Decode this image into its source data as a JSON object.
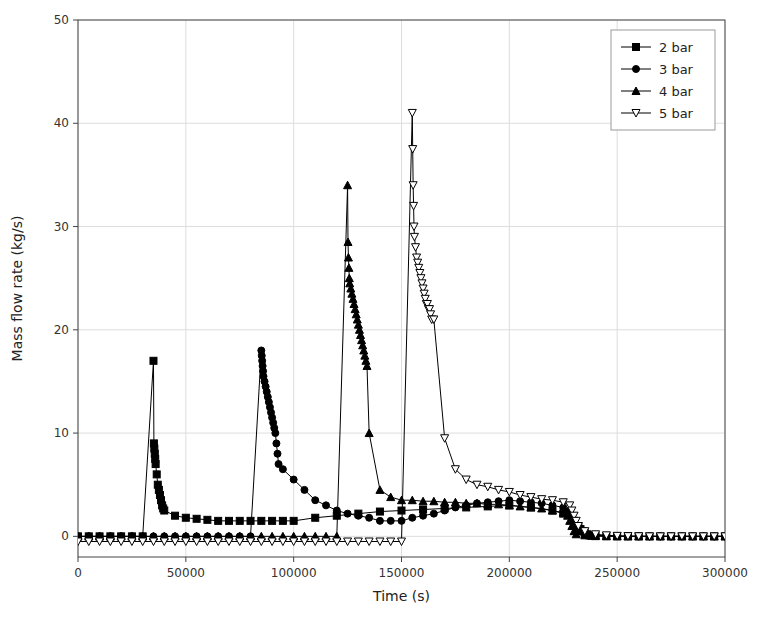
{
  "chart_data": {
    "type": "line",
    "xlabel": "Time (s)",
    "ylabel": "Mass flow rate (kg/s)",
    "xlim": [
      0,
      300000
    ],
    "ylim": [
      -2,
      50
    ],
    "xticks": [
      0,
      50000,
      100000,
      150000,
      200000,
      250000,
      300000
    ],
    "yticks": [
      0,
      10,
      20,
      30,
      40,
      50
    ],
    "grid": true,
    "legend": "upper right",
    "series": [
      {
        "name": "2 bar",
        "color": "black",
        "marker": "square",
        "x": [
          0,
          5000,
          10000,
          15000,
          20000,
          25000,
          30000,
          35000,
          35200,
          35400,
          35600,
          35800,
          36000,
          36500,
          37000,
          37500,
          38000,
          38500,
          39000,
          39500,
          40000,
          45000,
          50000,
          55000,
          60000,
          65000,
          70000,
          75000,
          80000,
          85000,
          90000,
          95000,
          100000,
          110000,
          120000,
          130000,
          140000,
          150000,
          160000,
          170000,
          180000,
          190000,
          200000,
          210000,
          220000,
          225000,
          230000,
          232000,
          233000,
          234000,
          235000,
          236000,
          237000,
          238000,
          240000,
          245000,
          250000,
          255000,
          260000,
          265000,
          270000,
          275000,
          280000,
          285000,
          290000,
          295000,
          300000
        ],
        "values": [
          0,
          0,
          0,
          0,
          0,
          0,
          0,
          17.0,
          9.0,
          8.5,
          8.0,
          7.5,
          7.0,
          6.0,
          5.0,
          4.5,
          4.0,
          3.5,
          3.0,
          2.7,
          2.5,
          2.0,
          1.8,
          1.7,
          1.6,
          1.5,
          1.5,
          1.5,
          1.5,
          1.5,
          1.5,
          1.5,
          1.5,
          1.8,
          2.0,
          2.2,
          2.4,
          2.5,
          2.6,
          2.7,
          2.8,
          2.9,
          3.0,
          2.8,
          2.5,
          2.2,
          1.5,
          1.0,
          0.7,
          0.5,
          0.3,
          0.2,
          0.1,
          0.05,
          0.02,
          0.01,
          0.0,
          0.0,
          0.0,
          0.0,
          0.0,
          0.0,
          0.0,
          0.0,
          0.0,
          0.0,
          0.0
        ]
      },
      {
        "name": "3 bar",
        "color": "black",
        "marker": "circle",
        "x": [
          0,
          5000,
          10000,
          15000,
          20000,
          25000,
          30000,
          35000,
          40000,
          45000,
          50000,
          55000,
          60000,
          65000,
          70000,
          75000,
          80000,
          85000,
          85200,
          85400,
          85600,
          85800,
          86000,
          86500,
          87000,
          87500,
          88000,
          88500,
          89000,
          89500,
          90000,
          90500,
          91000,
          91500,
          92000,
          92500,
          93000,
          95000,
          100000,
          105000,
          110000,
          115000,
          120000,
          125000,
          130000,
          135000,
          140000,
          145000,
          150000,
          155000,
          160000,
          165000,
          170000,
          175000,
          180000,
          185000,
          190000,
          195000,
          200000,
          205000,
          210000,
          215000,
          220000,
          225000,
          228000,
          229000,
          230000,
          231000,
          232000,
          233000,
          235000,
          240000,
          245000,
          250000,
          255000,
          260000,
          265000,
          270000,
          275000,
          280000,
          285000,
          290000,
          295000,
          300000
        ],
        "values": [
          0,
          0,
          0,
          0,
          0,
          0,
          0,
          0,
          0,
          0,
          0,
          0,
          0,
          0,
          0,
          0,
          0,
          18.0,
          17.5,
          17.0,
          16.5,
          16.0,
          15.5,
          15.0,
          14.5,
          14.0,
          13.5,
          13.0,
          12.5,
          12.0,
          11.5,
          11.0,
          10.5,
          10.0,
          9.0,
          8.0,
          7.0,
          6.5,
          5.5,
          4.5,
          3.5,
          3.0,
          2.5,
          2.2,
          2.0,
          1.8,
          1.5,
          1.5,
          1.5,
          1.8,
          2.0,
          2.2,
          2.5,
          2.8,
          3.0,
          3.2,
          3.3,
          3.4,
          3.5,
          3.4,
          3.3,
          3.2,
          3.0,
          2.8,
          2.5,
          2.0,
          1.5,
          1.0,
          0.7,
          0.5,
          0.3,
          0.1,
          0.05,
          0.02,
          0.01,
          0.0,
          0.0,
          0.0,
          0.0,
          0.0,
          0.0,
          0.0,
          0.0,
          0.0
        ]
      },
      {
        "name": "4 bar",
        "color": "black",
        "marker": "triangle-up",
        "x": [
          0,
          5000,
          10000,
          15000,
          20000,
          25000,
          30000,
          35000,
          40000,
          45000,
          50000,
          55000,
          60000,
          65000,
          70000,
          75000,
          80000,
          85000,
          90000,
          95000,
          100000,
          105000,
          110000,
          115000,
          120000,
          125000,
          125200,
          125400,
          125600,
          125800,
          126000,
          126500,
          127000,
          127500,
          128000,
          128500,
          129000,
          129500,
          130000,
          130500,
          131000,
          131500,
          132000,
          132500,
          133000,
          133500,
          134000,
          135000,
          140000,
          145000,
          150000,
          155000,
          160000,
          165000,
          170000,
          175000,
          180000,
          185000,
          190000,
          195000,
          200000,
          205000,
          210000,
          215000,
          220000,
          225000,
          227000,
          228000,
          229000,
          230000,
          231000,
          235000,
          240000,
          245000,
          250000,
          255000,
          260000,
          265000,
          270000,
          275000,
          280000,
          285000,
          290000,
          295000,
          300000
        ],
        "values": [
          0,
          0,
          0,
          0,
          0,
          0,
          0,
          0,
          0,
          0,
          0,
          0,
          0,
          0,
          0,
          0,
          0,
          0,
          0,
          0,
          0,
          0,
          0,
          0,
          0,
          34.0,
          28.5,
          27.0,
          26.0,
          25.0,
          24.5,
          24.0,
          23.5,
          23.0,
          22.5,
          22.0,
          21.5,
          21.0,
          20.5,
          20.0,
          19.5,
          19.0,
          18.5,
          18.0,
          17.5,
          17.0,
          16.5,
          10.0,
          4.5,
          3.8,
          3.5,
          3.5,
          3.4,
          3.4,
          3.3,
          3.3,
          3.2,
          3.2,
          3.1,
          3.1,
          3.0,
          2.9,
          2.8,
          2.7,
          2.5,
          2.3,
          2.0,
          1.5,
          1.0,
          0.5,
          0.2,
          0.1,
          0.05,
          0.02,
          0.01,
          0.0,
          0.0,
          0.0,
          0.0,
          0.0,
          0.0,
          0.0,
          0.0,
          0.0,
          0.0
        ]
      },
      {
        "name": "5 bar",
        "color": "black",
        "marker": "open-triangle-down",
        "x": [
          0,
          5000,
          10000,
          15000,
          20000,
          25000,
          30000,
          35000,
          40000,
          45000,
          50000,
          55000,
          60000,
          65000,
          70000,
          75000,
          80000,
          85000,
          90000,
          95000,
          100000,
          105000,
          110000,
          115000,
          120000,
          125000,
          130000,
          135000,
          140000,
          145000,
          150000,
          155000,
          155200,
          155400,
          155600,
          155800,
          156000,
          156500,
          157000,
          157500,
          158000,
          158500,
          159000,
          159500,
          160000,
          160500,
          161000,
          161500,
          162000,
          162500,
          163000,
          163500,
          164000,
          165000,
          170000,
          175000,
          180000,
          185000,
          190000,
          195000,
          200000,
          205000,
          210000,
          215000,
          220000,
          225000,
          228000,
          229000,
          230000,
          231000,
          232000,
          235000,
          240000,
          245000,
          250000,
          255000,
          260000,
          265000,
          270000,
          275000,
          280000,
          285000,
          290000,
          295000,
          300000
        ],
        "values": [
          -0.5,
          -0.5,
          -0.5,
          -0.5,
          -0.5,
          -0.5,
          -0.5,
          -0.5,
          -0.5,
          -0.5,
          -0.5,
          -0.5,
          -0.5,
          -0.5,
          -0.5,
          -0.5,
          -0.5,
          -0.5,
          -0.5,
          -0.5,
          -0.5,
          -0.5,
          -0.5,
          -0.5,
          -0.5,
          -0.5,
          -0.5,
          -0.5,
          -0.5,
          -0.5,
          -0.5,
          41.0,
          37.5,
          34.0,
          32.0,
          30.0,
          29.0,
          28.0,
          27.0,
          26.5,
          26.0,
          25.5,
          25.0,
          24.5,
          24.0,
          23.5,
          23.0,
          22.5,
          22.5,
          22.0,
          22.0,
          21.5,
          21.0,
          21.0,
          9.5,
          6.5,
          5.5,
          5.0,
          4.8,
          4.5,
          4.3,
          4.0,
          3.8,
          3.6,
          3.5,
          3.3,
          3.0,
          2.5,
          2.0,
          1.5,
          1.0,
          0.5,
          0.2,
          0.1,
          0.05,
          0.02,
          0.01,
          0.0,
          0.0,
          0.0,
          0.0,
          0.0,
          0.0,
          0.0,
          0.0
        ]
      }
    ]
  }
}
